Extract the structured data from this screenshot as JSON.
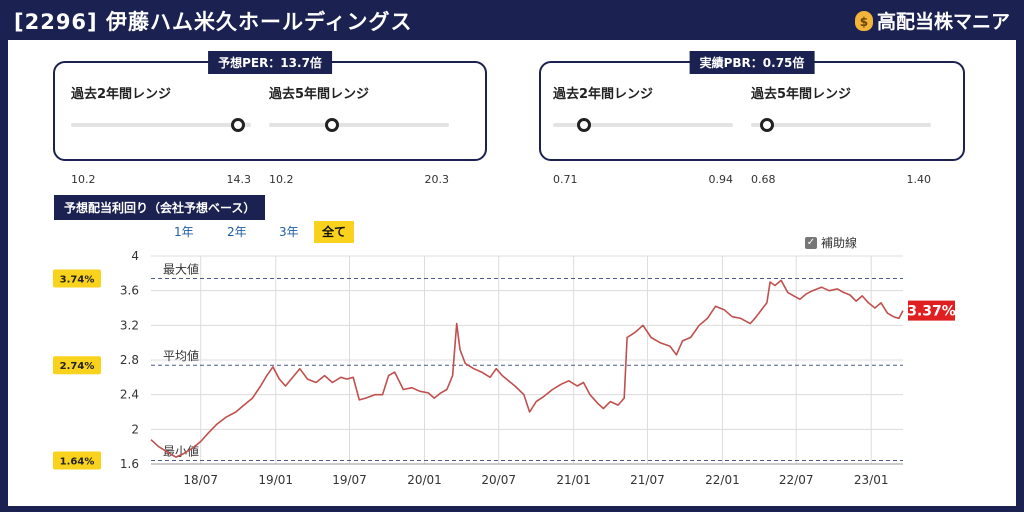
{
  "header": {
    "title": "[2296] 伊藤ハム米久ホールディングス",
    "brand": "高配当株マニア"
  },
  "per_box": {
    "tag": "予想PER：13.7倍",
    "ranges": [
      {
        "label": "過去2年間レンジ",
        "min": "10.2",
        "max": "14.3",
        "position": 0.93
      },
      {
        "label": "過去5年間レンジ",
        "min": "10.2",
        "max": "20.3",
        "position": 0.35
      }
    ]
  },
  "pbr_box": {
    "tag": "実績PBR：0.75倍",
    "ranges": [
      {
        "label": "過去2年間レンジ",
        "min": "0.71",
        "max": "0.94",
        "position": 0.17
      },
      {
        "label": "過去5年間レンジ",
        "min": "0.68",
        "max": "1.40",
        "position": 0.09
      }
    ]
  },
  "section": {
    "title": "予想配当利回り（会社予想ベース）",
    "periods": [
      "1年",
      "2年",
      "3年",
      "全て"
    ],
    "active_period": "全て",
    "aux_label": "補助線",
    "aux_checked": true
  },
  "chart_data": {
    "type": "line",
    "ylim": [
      1.6,
      4.0
    ],
    "yticks": [
      "4",
      "3.6",
      "3.2",
      "2.8",
      "2.4",
      "2",
      "1.6"
    ],
    "xlim": [
      "2018-03-01",
      "2023-03-20"
    ],
    "xticks": [
      {
        "label": "18/07",
        "date": "2018-07-01"
      },
      {
        "label": "19/01",
        "date": "2019-01-01"
      },
      {
        "label": "19/07",
        "date": "2019-07-01"
      },
      {
        "label": "20/01",
        "date": "2020-01-01"
      },
      {
        "label": "20/07",
        "date": "2020-07-01"
      },
      {
        "label": "21/01",
        "date": "2021-01-01"
      },
      {
        "label": "21/07",
        "date": "2021-07-01"
      },
      {
        "label": "22/01",
        "date": "2022-01-01"
      },
      {
        "label": "22/07",
        "date": "2022-07-01"
      },
      {
        "label": "23/01",
        "date": "2023-01-01"
      }
    ],
    "reference_lines": [
      {
        "label": "最大値",
        "value": 3.74,
        "badge": "3.74%"
      },
      {
        "label": "平均値",
        "value": 2.74,
        "badge": "2.74%"
      },
      {
        "label": "最小値",
        "value": 1.64,
        "badge": "1.64%"
      }
    ],
    "current_badge": "3.37%",
    "current_value": 3.37,
    "line_color": "#c0504d",
    "series": [
      {
        "points": [
          [
            "2018-03-01",
            1.88
          ],
          [
            "2018-03-20",
            1.8
          ],
          [
            "2018-04-10",
            1.74
          ],
          [
            "2018-05-01",
            1.68
          ],
          [
            "2018-05-20",
            1.72
          ],
          [
            "2018-06-10",
            1.78
          ],
          [
            "2018-07-01",
            1.86
          ],
          [
            "2018-07-20",
            1.96
          ],
          [
            "2018-08-10",
            2.06
          ],
          [
            "2018-09-01",
            2.14
          ],
          [
            "2018-09-25",
            2.2
          ],
          [
            "2018-10-15",
            2.28
          ],
          [
            "2018-11-05",
            2.36
          ],
          [
            "2018-11-25",
            2.5
          ],
          [
            "2018-12-10",
            2.62
          ],
          [
            "2018-12-25",
            2.72
          ],
          [
            "2019-01-10",
            2.58
          ],
          [
            "2019-01-25",
            2.5
          ],
          [
            "2019-02-15",
            2.62
          ],
          [
            "2019-03-01",
            2.7
          ],
          [
            "2019-03-20",
            2.58
          ],
          [
            "2019-04-10",
            2.54
          ],
          [
            "2019-05-01",
            2.62
          ],
          [
            "2019-05-20",
            2.54
          ],
          [
            "2019-06-10",
            2.6
          ],
          [
            "2019-06-25",
            2.58
          ],
          [
            "2019-07-10",
            2.6
          ],
          [
            "2019-07-25",
            2.34
          ],
          [
            "2019-08-10",
            2.36
          ],
          [
            "2019-09-01",
            2.4
          ],
          [
            "2019-09-20",
            2.4
          ],
          [
            "2019-10-05",
            2.62
          ],
          [
            "2019-10-20",
            2.66
          ],
          [
            "2019-11-10",
            2.46
          ],
          [
            "2019-12-01",
            2.48
          ],
          [
            "2019-12-20",
            2.44
          ],
          [
            "2020-01-10",
            2.42
          ],
          [
            "2020-01-25",
            2.36
          ],
          [
            "2020-02-10",
            2.42
          ],
          [
            "2020-02-25",
            2.46
          ],
          [
            "2020-03-10",
            2.62
          ],
          [
            "2020-03-20",
            3.22
          ],
          [
            "2020-03-28",
            2.92
          ],
          [
            "2020-04-10",
            2.76
          ],
          [
            "2020-05-01",
            2.7
          ],
          [
            "2020-05-20",
            2.66
          ],
          [
            "2020-06-10",
            2.6
          ],
          [
            "2020-06-25",
            2.7
          ],
          [
            "2020-07-10",
            2.62
          ],
          [
            "2020-07-25",
            2.56
          ],
          [
            "2020-08-10",
            2.5
          ],
          [
            "2020-09-01",
            2.4
          ],
          [
            "2020-09-15",
            2.2
          ],
          [
            "2020-10-01",
            2.32
          ],
          [
            "2020-10-20",
            2.38
          ],
          [
            "2020-11-10",
            2.46
          ],
          [
            "2020-12-01",
            2.52
          ],
          [
            "2020-12-20",
            2.56
          ],
          [
            "2021-01-10",
            2.5
          ],
          [
            "2021-01-25",
            2.54
          ],
          [
            "2021-02-10",
            2.4
          ],
          [
            "2021-03-01",
            2.3
          ],
          [
            "2021-03-15",
            2.24
          ],
          [
            "2021-04-01",
            2.32
          ],
          [
            "2021-04-20",
            2.28
          ],
          [
            "2021-05-05",
            2.36
          ],
          [
            "2021-05-12",
            3.06
          ],
          [
            "2021-06-01",
            3.12
          ],
          [
            "2021-06-20",
            3.2
          ],
          [
            "2021-07-10",
            3.06
          ],
          [
            "2021-08-01",
            3.0
          ],
          [
            "2021-08-25",
            2.96
          ],
          [
            "2021-09-10",
            2.86
          ],
          [
            "2021-09-25",
            3.02
          ],
          [
            "2021-10-15",
            3.06
          ],
          [
            "2021-11-05",
            3.2
          ],
          [
            "2021-11-25",
            3.28
          ],
          [
            "2021-12-15",
            3.42
          ],
          [
            "2022-01-05",
            3.38
          ],
          [
            "2022-01-25",
            3.3
          ],
          [
            "2022-02-15",
            3.28
          ],
          [
            "2022-03-10",
            3.22
          ],
          [
            "2022-03-25",
            3.3
          ],
          [
            "2022-04-10",
            3.4
          ],
          [
            "2022-04-20",
            3.46
          ],
          [
            "2022-04-28",
            3.7
          ],
          [
            "2022-05-10",
            3.66
          ],
          [
            "2022-05-25",
            3.72
          ],
          [
            "2022-06-10",
            3.58
          ],
          [
            "2022-06-25",
            3.54
          ],
          [
            "2022-07-10",
            3.5
          ],
          [
            "2022-07-25",
            3.56
          ],
          [
            "2022-08-10",
            3.6
          ],
          [
            "2022-09-01",
            3.64
          ],
          [
            "2022-09-20",
            3.6
          ],
          [
            "2022-10-10",
            3.62
          ],
          [
            "2022-10-25",
            3.58
          ],
          [
            "2022-11-10",
            3.55
          ],
          [
            "2022-11-25",
            3.48
          ],
          [
            "2022-12-10",
            3.54
          ],
          [
            "2022-12-25",
            3.46
          ],
          [
            "2023-01-10",
            3.4
          ],
          [
            "2023-01-25",
            3.46
          ],
          [
            "2023-02-10",
            3.34
          ],
          [
            "2023-02-25",
            3.3
          ],
          [
            "2023-03-10",
            3.28
          ],
          [
            "2023-03-20",
            3.37
          ]
        ]
      }
    ]
  }
}
